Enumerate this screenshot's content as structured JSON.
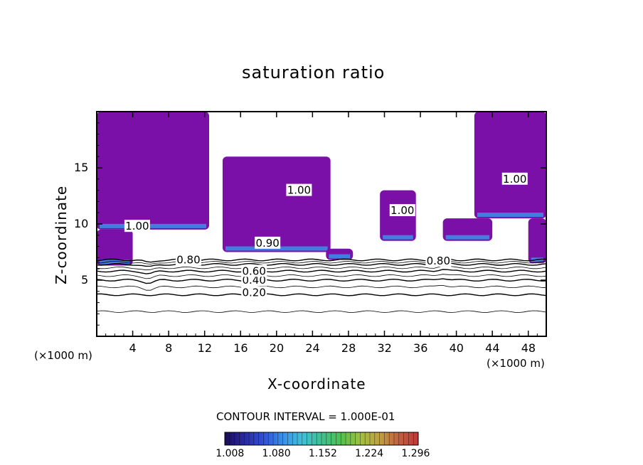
{
  "chart_data": {
    "type": "heatmap",
    "title": "saturation ratio",
    "xlabel": "X-coordinate",
    "ylabel": "Z-coordinate",
    "x_unit": "(×1000 m)",
    "xlim": [
      0,
      50
    ],
    "ylim": [
      0,
      20
    ],
    "x_ticks": [
      4,
      8,
      12,
      16,
      20,
      24,
      28,
      32,
      36,
      40,
      44,
      48
    ],
    "y_ticks": [
      5,
      10,
      15
    ],
    "contour_interval_label": "CONTOUR INTERVAL = 1.000E-01",
    "contour_levels": [
      0.1,
      0.2,
      0.3,
      0.4,
      0.5,
      0.6,
      0.7,
      0.8,
      0.9,
      1.0
    ],
    "contour_labels": [
      {
        "text": "0.20",
        "x": 17.5,
        "z": 3.9
      },
      {
        "text": "0.40",
        "x": 17.5,
        "z": 5.0
      },
      {
        "text": "0.60",
        "x": 17.5,
        "z": 5.8
      },
      {
        "text": "0.80",
        "x": 10.2,
        "z": 6.8
      },
      {
        "text": "0.80",
        "x": 38.0,
        "z": 6.7
      },
      {
        "text": "1.00",
        "x": 4.5,
        "z": 9.8
      },
      {
        "text": "1.00",
        "x": 46.5,
        "z": 14.0
      },
      {
        "text": "1.00",
        "x": 22.5,
        "z": 13.0
      },
      {
        "text": "1.00",
        "x": 34.0,
        "z": 11.2
      },
      {
        "text": "0.90",
        "x": 19.0,
        "z": 8.3
      }
    ],
    "supersaturated_regions": [
      {
        "x": [
          0.0,
          12.5
        ],
        "z": [
          9.5,
          20.0
        ]
      },
      {
        "x": [
          0.0,
          4.0
        ],
        "z": [
          6.3,
          9.5
        ]
      },
      {
        "x": [
          14.0,
          26.0
        ],
        "z": [
          7.5,
          16.0
        ]
      },
      {
        "x": [
          25.5,
          28.5
        ],
        "z": [
          6.8,
          7.8
        ]
      },
      {
        "x": [
          31.5,
          35.5
        ],
        "z": [
          8.5,
          13.0
        ]
      },
      {
        "x": [
          38.5,
          44.0
        ],
        "z": [
          8.5,
          10.5
        ]
      },
      {
        "x": [
          42.0,
          50.0
        ],
        "z": [
          10.5,
          20.0
        ]
      },
      {
        "x": [
          48.0,
          50.0
        ],
        "z": [
          6.5,
          10.5
        ]
      }
    ],
    "colorbar": {
      "min": 1.0,
      "max": 1.3,
      "tick_labels": [
        "1.008",
        "1.080",
        "1.152",
        "1.224",
        "1.296"
      ],
      "colors": [
        "#1a0a5a",
        "#2a2aa0",
        "#3050d8",
        "#3a90e8",
        "#40c0d8",
        "#40c090",
        "#50c050",
        "#a0c040",
        "#c0a040",
        "#c06040",
        "#c03838"
      ]
    },
    "base_fill_color": "#7a10a8",
    "grid": false,
    "legend": "none"
  }
}
